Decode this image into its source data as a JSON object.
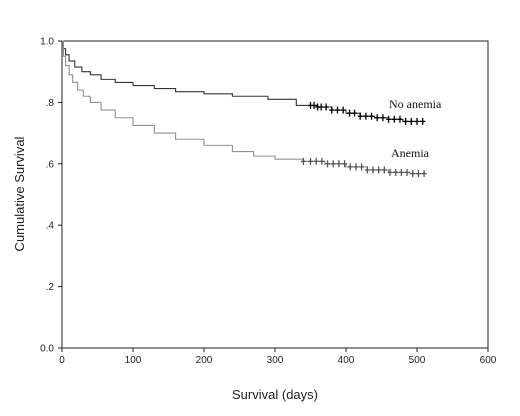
{
  "chart_data": {
    "type": "line",
    "subtype": "kaplan-meier",
    "title": "",
    "xlabel": "Survival (days)",
    "ylabel": "Cumulative Survival",
    "xlim": [
      0,
      600
    ],
    "ylim": [
      0.0,
      1.0
    ],
    "x_ticks": [
      {
        "value": 0,
        "label": "0"
      },
      {
        "value": 100,
        "label": "100"
      },
      {
        "value": 200,
        "label": "200"
      },
      {
        "value": 300,
        "label": "300"
      },
      {
        "value": 400,
        "label": "400"
      },
      {
        "value": 500,
        "label": "500"
      },
      {
        "value": 600,
        "label": "600"
      }
    ],
    "y_ticks": [
      {
        "value": 0.0,
        "label": "0.0"
      },
      {
        "value": 0.2,
        "label": ".2"
      },
      {
        "value": 0.4,
        "label": ".4"
      },
      {
        "value": 0.6,
        "label": ".6"
      },
      {
        "value": 0.8,
        "label": ".8"
      },
      {
        "value": 1.0,
        "label": "1.0"
      }
    ],
    "grid": false,
    "legend": "none",
    "series": [
      {
        "name": "No anemia",
        "color": "#333333",
        "censor_color": "#000000",
        "label": "No anemia",
        "x": [
          0,
          2,
          5,
          10,
          18,
          28,
          40,
          55,
          75,
          100,
          130,
          160,
          200,
          240,
          290,
          330,
          360,
          380,
          400,
          420,
          440,
          460,
          480,
          512
        ],
        "y": [
          1.0,
          0.975,
          0.955,
          0.935,
          0.915,
          0.9,
          0.89,
          0.875,
          0.865,
          0.855,
          0.845,
          0.835,
          0.828,
          0.82,
          0.81,
          0.79,
          0.785,
          0.775,
          0.765,
          0.755,
          0.75,
          0.745,
          0.738,
          0.738
        ],
        "censored_x": [
          350,
          355,
          360,
          365,
          372,
          380,
          388,
          396,
          405,
          412,
          420,
          428,
          436,
          444,
          452,
          460,
          468,
          476,
          484,
          492,
          500,
          508
        ]
      },
      {
        "name": "Anemia",
        "color": "#909090",
        "censor_color": "#555555",
        "label": "Anemia",
        "x": [
          0,
          2,
          5,
          10,
          15,
          22,
          30,
          40,
          55,
          75,
          100,
          130,
          160,
          200,
          240,
          270,
          300,
          340,
          370,
          400,
          430,
          460,
          490,
          512
        ],
        "y": [
          1.0,
          0.95,
          0.92,
          0.89,
          0.865,
          0.84,
          0.82,
          0.8,
          0.775,
          0.75,
          0.725,
          0.7,
          0.68,
          0.66,
          0.64,
          0.625,
          0.615,
          0.608,
          0.6,
          0.59,
          0.58,
          0.572,
          0.568,
          0.568
        ],
        "censored_x": [
          340,
          350,
          358,
          366,
          374,
          382,
          390,
          398,
          406,
          414,
          422,
          430,
          438,
          446,
          454,
          462,
          470,
          478,
          486,
          494,
          502,
          510
        ]
      }
    ]
  }
}
